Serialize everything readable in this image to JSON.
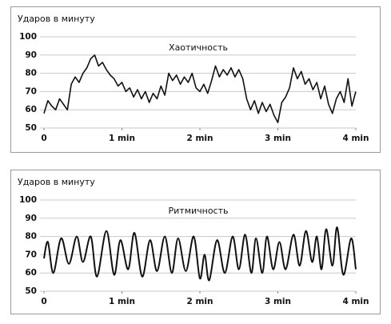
{
  "chart_data": [
    {
      "type": "line",
      "title": "Хаотичность",
      "ylabel": "Ударов в минуту",
      "color": "#111111",
      "smooth": false,
      "grid": true,
      "xlim": [
        0,
        4
      ],
      "xticks": [
        0,
        {
          "value": 1,
          "label": "1 min"
        },
        {
          "value": 2,
          "label": "2 min"
        },
        {
          "value": 3,
          "label": "3 min"
        },
        {
          "value": 4,
          "label": "4 min"
        }
      ],
      "ylim": [
        50,
        100
      ],
      "yticks": [
        50,
        60,
        70,
        80,
        90,
        100
      ],
      "x": [
        0,
        0.05,
        0.1,
        0.15,
        0.2,
        0.25,
        0.3,
        0.35,
        0.4,
        0.45,
        0.5,
        0.55,
        0.6,
        0.65,
        0.7,
        0.75,
        0.8,
        0.85,
        0.9,
        0.95,
        1,
        1.05,
        1.1,
        1.15,
        1.2,
        1.25,
        1.3,
        1.35,
        1.4,
        1.45,
        1.5,
        1.55,
        1.6,
        1.65,
        1.7,
        1.75,
        1.8,
        1.85,
        1.9,
        1.95,
        2,
        2.05,
        2.1,
        2.15,
        2.2,
        2.25,
        2.3,
        2.35,
        2.4,
        2.45,
        2.5,
        2.55,
        2.6,
        2.65,
        2.7,
        2.75,
        2.8,
        2.85,
        2.9,
        2.95,
        3,
        3.05,
        3.1,
        3.15,
        3.2,
        3.25,
        3.3,
        3.35,
        3.4,
        3.45,
        3.5,
        3.55,
        3.6,
        3.65,
        3.7,
        3.75,
        3.8,
        3.85,
        3.9,
        3.95,
        4
      ],
      "values": [
        58,
        65,
        62,
        60,
        66,
        63,
        60,
        74,
        78,
        75,
        80,
        83,
        88,
        90,
        84,
        86,
        82,
        79,
        77,
        73,
        75,
        70,
        72,
        67,
        71,
        66,
        70,
        64,
        69,
        66,
        73,
        68,
        80,
        76,
        79,
        74,
        78,
        75,
        80,
        72,
        70,
        74,
        69,
        76,
        84,
        78,
        82,
        79,
        83,
        78,
        82,
        77,
        66,
        60,
        65,
        58,
        64,
        59,
        63,
        57,
        53,
        64,
        67,
        72,
        83,
        77,
        81,
        74,
        77,
        71,
        75,
        66,
        73,
        63,
        58,
        66,
        70,
        64,
        77,
        62,
        70
      ]
    },
    {
      "type": "line",
      "title": "Ритмичность",
      "ylabel": "Ударов в минуту",
      "color": "#111111",
      "smooth": true,
      "grid": true,
      "xlim": [
        0,
        4
      ],
      "xticks": [
        0,
        {
          "value": 1,
          "label": "1 min"
        },
        {
          "value": 2,
          "label": "2 min"
        },
        {
          "value": 3,
          "label": "3 min"
        },
        {
          "value": 4,
          "label": "4 min"
        }
      ],
      "ylim": [
        50,
        100
      ],
      "yticks": [
        50,
        60,
        70,
        80,
        90,
        100
      ],
      "x": [
        0,
        0.05,
        0.12,
        0.22,
        0.32,
        0.42,
        0.5,
        0.6,
        0.68,
        0.8,
        0.9,
        0.98,
        1.08,
        1.16,
        1.26,
        1.36,
        1.45,
        1.55,
        1.64,
        1.72,
        1.82,
        1.92,
        2,
        2.06,
        2.12,
        2.22,
        2.32,
        2.42,
        2.5,
        2.58,
        2.66,
        2.72,
        2.8,
        2.86,
        2.94,
        3.02,
        3.1,
        3.2,
        3.28,
        3.36,
        3.44,
        3.5,
        3.56,
        3.62,
        3.7,
        3.76,
        3.84,
        3.94,
        4
      ],
      "values": [
        68,
        77,
        60,
        79,
        65,
        80,
        66,
        80,
        58,
        83,
        59,
        78,
        62,
        82,
        58,
        78,
        61,
        80,
        60,
        79,
        61,
        80,
        57,
        70,
        56,
        78,
        60,
        80,
        62,
        81,
        60,
        79,
        60,
        80,
        62,
        77,
        62,
        81,
        64,
        83,
        66,
        80,
        62,
        84,
        64,
        85,
        59,
        79,
        62
      ]
    }
  ]
}
